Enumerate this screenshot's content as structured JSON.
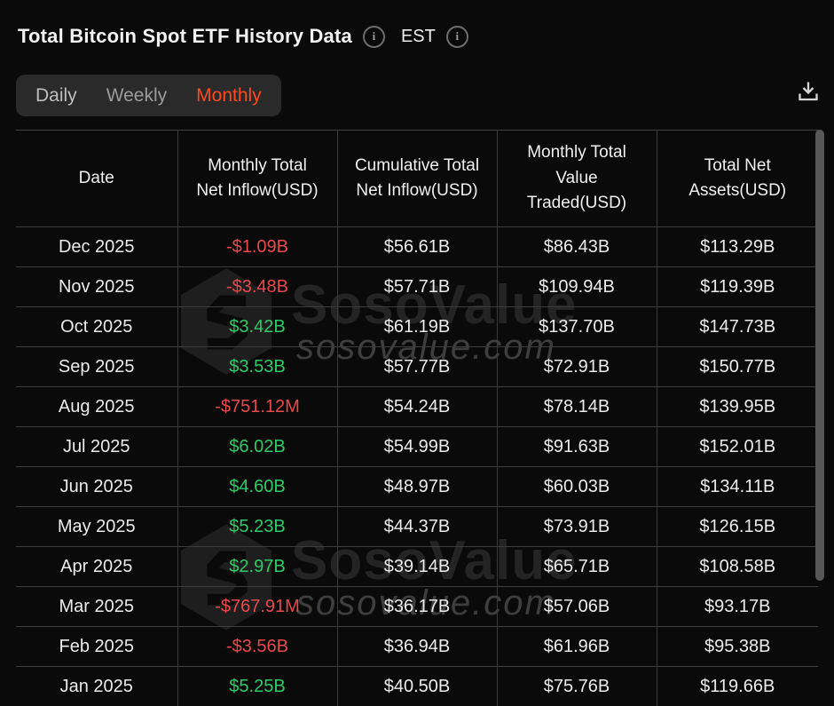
{
  "header": {
    "title": "Total Bitcoin Spot ETF History Data",
    "timezone": "EST"
  },
  "icons": {
    "title_info": "info-circle",
    "timezone_info": "info-circle",
    "download": "download-tray-arrow",
    "info_glyph": "i"
  },
  "tabs": [
    {
      "label": "Daily",
      "active": false
    },
    {
      "label": "Weekly",
      "active": false
    },
    {
      "label": "Monthly",
      "active": true
    }
  ],
  "watermark": {
    "brand": "SosoValue",
    "domain": "sosovalue.com"
  },
  "table": {
    "columns": [
      [
        "Date"
      ],
      [
        "Monthly Total",
        "Net Inflow(USD)"
      ],
      [
        "Cumulative Total",
        "Net Inflow(USD)"
      ],
      [
        "Monthly Total",
        "Value",
        "Traded(USD)"
      ],
      [
        "Total Net",
        "Assets(USD)"
      ]
    ],
    "rows": [
      [
        "Dec 2025",
        "-$1.09B",
        "$56.61B",
        "$86.43B",
        "$113.29B"
      ],
      [
        "Nov 2025",
        "-$3.48B",
        "$57.71B",
        "$109.94B",
        "$119.39B"
      ],
      [
        "Oct 2025",
        "$3.42B",
        "$61.19B",
        "$137.70B",
        "$147.73B"
      ],
      [
        "Sep 2025",
        "$3.53B",
        "$57.77B",
        "$72.91B",
        "$150.77B"
      ],
      [
        "Aug 2025",
        "-$751.12M",
        "$54.24B",
        "$78.14B",
        "$139.95B"
      ],
      [
        "Jul 2025",
        "$6.02B",
        "$54.99B",
        "$91.63B",
        "$152.01B"
      ],
      [
        "Jun 2025",
        "$4.60B",
        "$48.97B",
        "$60.03B",
        "$134.11B"
      ],
      [
        "May 2025",
        "$5.23B",
        "$44.37B",
        "$73.91B",
        "$126.15B"
      ],
      [
        "Apr 2025",
        "$2.97B",
        "$39.14B",
        "$65.71B",
        "$108.58B"
      ],
      [
        "Mar 2025",
        "-$767.91M",
        "$36.17B",
        "$57.06B",
        "$93.17B"
      ],
      [
        "Feb 2025",
        "-$3.56B",
        "$36.94B",
        "$61.96B",
        "$95.38B"
      ],
      [
        "Jan 2025",
        "$5.25B",
        "$40.50B",
        "$75.76B",
        "$119.66B"
      ]
    ]
  },
  "colors": {
    "positive": "#2ecb68",
    "negative": "#e8494d",
    "accent": "#fb4a1f"
  }
}
